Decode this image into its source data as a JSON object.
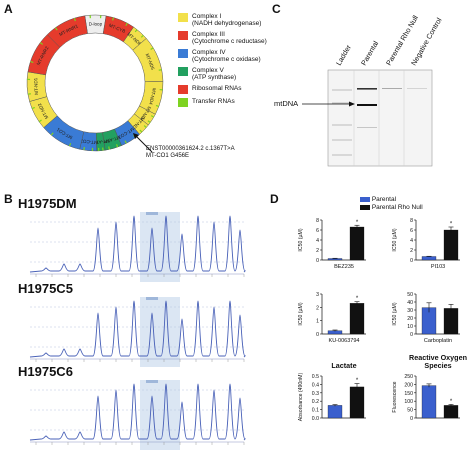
{
  "panel_a": {
    "letter": "A",
    "ring_segments": [
      {
        "label": "D-loop",
        "color": "#eeeeee"
      },
      {
        "label": "MT-CYB",
        "color": "#e53b2c"
      },
      {
        "label": "MT-ND6",
        "color": "#f2e04b"
      },
      {
        "label": "MT-ND5",
        "color": "#f2e04b"
      },
      {
        "label": "MT-ND4",
        "color": "#f2e04b"
      },
      {
        "label": "MT-ND4L",
        "color": "#f2e04b"
      },
      {
        "label": "MT-ND3",
        "color": "#f2e04b"
      },
      {
        "label": "MT-CO3",
        "color": "#3a7bd5"
      },
      {
        "label": "MT-ATP6",
        "color": "#22a060"
      },
      {
        "label": "MT-ATP8",
        "color": "#22a060"
      },
      {
        "label": "MT-CO2",
        "color": "#3a7bd5"
      },
      {
        "label": "MT-CO1",
        "color": "#3a7bd5"
      },
      {
        "label": "MT-ND2",
        "color": "#f2e04b"
      },
      {
        "label": "MT-ND1",
        "color": "#f2e04b"
      },
      {
        "label": "MT-RNR2",
        "color": "#e53b2c"
      },
      {
        "label": "MT-RNR1",
        "color": "#e53b2c"
      }
    ],
    "legend": [
      {
        "label": "Complex I",
        "sub": "(NADH dehydrogenase)",
        "color": "#f2e04b"
      },
      {
        "label": "Complex III",
        "sub": "(Cytochrome c reductase)",
        "color": "#e53b2c"
      },
      {
        "label": "Complex IV",
        "sub": "(Cytochrome c oxidase)",
        "color": "#3a7bd5"
      },
      {
        "label": "Complex V",
        "sub": "(ATP synthase)",
        "color": "#22a060"
      },
      {
        "label": "Ribosomal RNAs",
        "sub": "",
        "color": "#e53b2c"
      },
      {
        "label": "Transfer RNAs",
        "sub": "",
        "color": "#7ed321"
      }
    ],
    "annotation_line1": "ENST00000361624.2 c.1367T>A",
    "annotation_line2": "MT-CO1 G456E"
  },
  "panel_b": {
    "letter": "B",
    "traces": [
      {
        "title": "H1975DM"
      },
      {
        "title": "H1975C5"
      },
      {
        "title": "H1975C6"
      }
    ]
  },
  "panel_c": {
    "letter": "C",
    "lanes": [
      "Ladder",
      "Parental",
      "Parental Rho Null",
      "Negative Control"
    ],
    "band_label": "mtDNA"
  },
  "panel_d": {
    "letter": "D",
    "legend": [
      {
        "label": "Parental",
        "color": "#3a5fcd"
      },
      {
        "label": "Parental Rho Null",
        "color": "#111111"
      }
    ]
  },
  "chart_data": [
    {
      "type": "bar",
      "title": "",
      "xlabel": "BEZ235",
      "ylabel": "IC50 (µM)",
      "ylim": [
        0,
        8
      ],
      "yticks": [
        "0",
        "2",
        "4",
        "6",
        "8"
      ],
      "categories": [
        "Parental",
        "Parental Rho Null"
      ],
      "values": [
        0.3,
        6.6
      ],
      "errors": [
        0.05,
        0.35
      ],
      "significance": "*"
    },
    {
      "type": "bar",
      "title": "",
      "xlabel": "PI103",
      "ylabel": "IC50 (µM)",
      "ylim": [
        0,
        8
      ],
      "yticks": [
        "0",
        "2",
        "4",
        "6",
        "8"
      ],
      "categories": [
        "Parental",
        "Parental Rho Null"
      ],
      "values": [
        0.7,
        6.0
      ],
      "errors": [
        0.05,
        0.6
      ],
      "significance": "*"
    },
    {
      "type": "bar",
      "title": "",
      "xlabel": "KU-0063794",
      "ylabel": "IC50 (µM)",
      "ylim": [
        0,
        3
      ],
      "yticks": [
        "0",
        "1",
        "2",
        "3"
      ],
      "categories": [
        "Parental",
        "Parental Rho Null"
      ],
      "values": [
        0.25,
        2.3
      ],
      "errors": [
        0.05,
        0.12
      ],
      "significance": "*"
    },
    {
      "type": "bar",
      "title": "",
      "xlabel": "Carboplatin",
      "ylabel": "IC50 (µM)",
      "ylim": [
        0,
        50
      ],
      "yticks": [
        "0",
        "10",
        "20",
        "30",
        "40",
        "50"
      ],
      "categories": [
        "Parental",
        "Parental Rho Null"
      ],
      "values": [
        33,
        32
      ],
      "errors": [
        6,
        5
      ],
      "significance": ""
    },
    {
      "type": "bar",
      "title": "Lactate",
      "xlabel": "",
      "ylabel": "Absorbance (490nM)",
      "ylim": [
        0,
        0.5
      ],
      "yticks": [
        "0.0",
        "0.1",
        "0.2",
        "0.3",
        "0.4",
        "0.5"
      ],
      "categories": [
        "Parental",
        "Parental Rho Null"
      ],
      "values": [
        0.15,
        0.37
      ],
      "errors": [
        0.01,
        0.04
      ],
      "significance": "*"
    },
    {
      "type": "bar",
      "title": "Reactive Oxygen Species",
      "xlabel": "",
      "ylabel": "Fluorescence",
      "ylim": [
        0,
        250
      ],
      "yticks": [
        "0",
        "50",
        "100",
        "150",
        "200",
        "250"
      ],
      "categories": [
        "Parental",
        "Parental Rho Null"
      ],
      "values": [
        193,
        75
      ],
      "errors": [
        10,
        6
      ],
      "significance": "*"
    }
  ],
  "colors": {
    "parental": "#3a5fcd",
    "rho_null": "#111111",
    "trace": "#4a62b8"
  }
}
